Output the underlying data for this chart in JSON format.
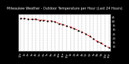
{
  "title": "Milwaukee Weather - Outdoor Temperature per Hour (Last 24 Hours)",
  "temperatures": [
    43,
    43,
    42,
    42,
    42,
    41,
    41,
    40,
    40,
    39,
    37,
    36,
    34,
    33,
    31,
    29,
    27,
    25,
    22,
    19,
    16,
    14,
    11,
    9
  ],
  "hours": [
    "12a",
    "1a",
    "2a",
    "3a",
    "4a",
    "5a",
    "6a",
    "7a",
    "8a",
    "9a",
    "10a",
    "11a",
    "12p",
    "1p",
    "2p",
    "3p",
    "4p",
    "5p",
    "6p",
    "7p",
    "8p",
    "9p",
    "10p",
    "11p"
  ],
  "line_color": "#ff0000",
  "marker_color": "#000000",
  "bg_color": "#ffffff",
  "outer_bg": "#000000",
  "grid_color": "#555555",
  "title_fontsize": 3.5,
  "tick_fontsize": 2.8,
  "ylim_min": 5,
  "ylim_max": 48,
  "yticks": [
    10,
    15,
    20,
    25,
    30,
    35,
    40,
    45
  ],
  "title_color": "#ffffff"
}
